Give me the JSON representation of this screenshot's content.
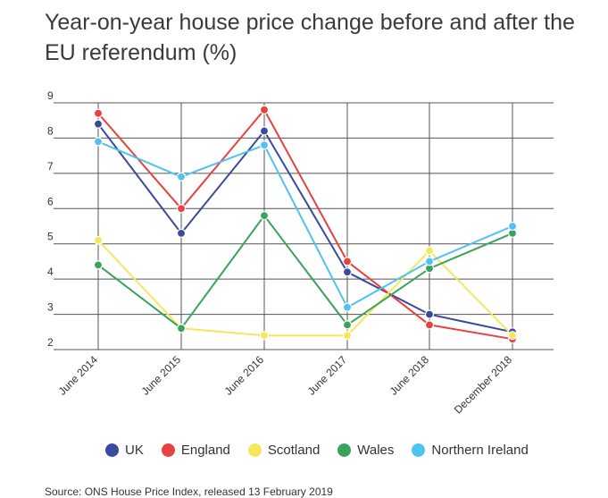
{
  "chart_data": {
    "type": "line",
    "title": "Year-on-year house price change before and after the EU referendum (%)",
    "xlabel": "",
    "ylabel": "",
    "categories": [
      "June 2014",
      "June 2015",
      "June 2016",
      "June 2017",
      "June 2018",
      "December 2018"
    ],
    "ylim": [
      2,
      9
    ],
    "yticks": [
      "2",
      "3",
      "4",
      "5",
      "6",
      "7",
      "8",
      "9"
    ],
    "grid": true,
    "legend_position": "bottom",
    "series": [
      {
        "name": "UK",
        "color": "#3a4a9c",
        "values": [
          8.4,
          5.3,
          8.2,
          4.2,
          3.0,
          2.5
        ]
      },
      {
        "name": "England",
        "color": "#e8413f",
        "values": [
          8.7,
          6.0,
          8.8,
          4.5,
          2.7,
          2.3
        ]
      },
      {
        "name": "Scotland",
        "color": "#f7e65a",
        "values": [
          5.1,
          2.6,
          2.4,
          2.4,
          4.8,
          2.4
        ]
      },
      {
        "name": "Wales",
        "color": "#3aa35b",
        "values": [
          4.4,
          2.6,
          5.8,
          2.7,
          4.3,
          5.3
        ]
      },
      {
        "name": "Northern Ireland",
        "color": "#4fc3ef",
        "values": [
          7.9,
          6.9,
          7.8,
          3.2,
          4.5,
          5.5
        ]
      }
    ]
  },
  "source": "Source: ONS House Price Index, released 13 February 2019"
}
